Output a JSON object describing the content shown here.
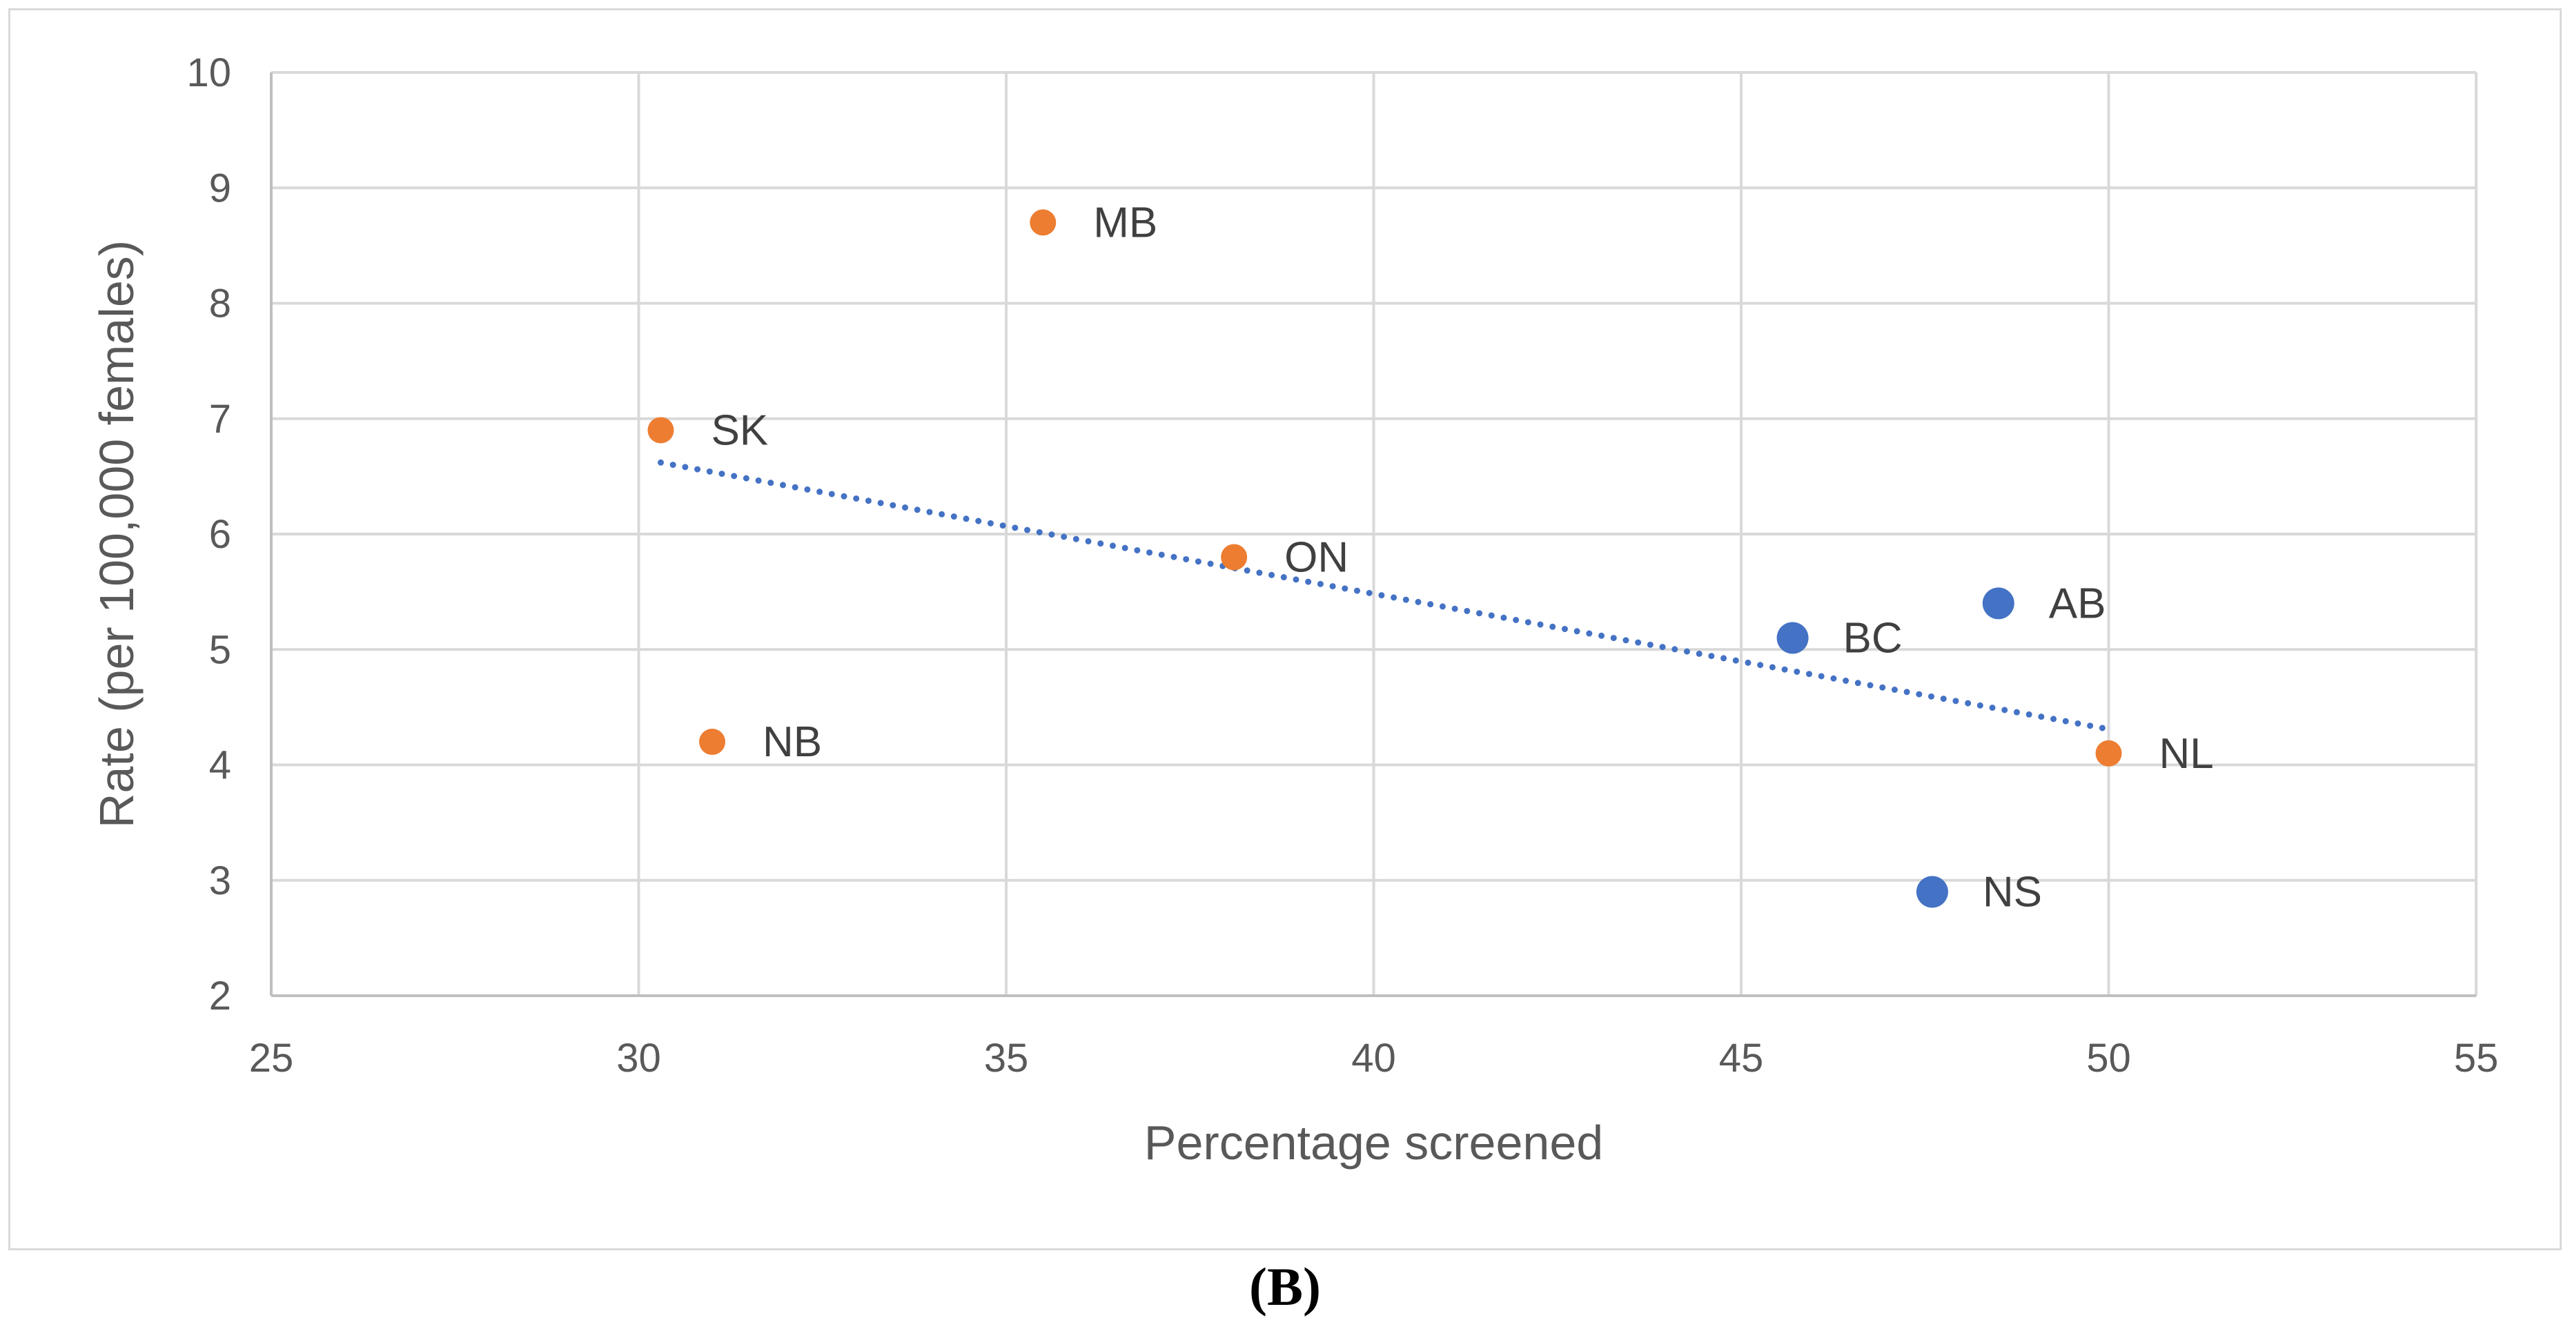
{
  "chart_data": {
    "type": "scatter",
    "title": "",
    "xlabel": "Percentage screened",
    "ylabel": "Rate (per 100,000 females)",
    "xlim": [
      25,
      55
    ],
    "ylim": [
      2,
      10
    ],
    "xticks": [
      25,
      30,
      35,
      40,
      45,
      50,
      55
    ],
    "yticks": [
      2,
      3,
      4,
      5,
      6,
      7,
      8,
      9,
      10
    ],
    "grid": true,
    "series": [
      {
        "name": "orange",
        "color": "#ED7D31",
        "marker_size": "small",
        "points": [
          {
            "label": "MB",
            "x": 35.5,
            "y": 8.7
          },
          {
            "label": "SK",
            "x": 30.3,
            "y": 6.9
          },
          {
            "label": "ON",
            "x": 38.1,
            "y": 5.8
          },
          {
            "label": "NB",
            "x": 31.0,
            "y": 4.2
          },
          {
            "label": "NL",
            "x": 50.0,
            "y": 4.1
          }
        ]
      },
      {
        "name": "blue",
        "color": "#4472C4",
        "marker_size": "large",
        "points": [
          {
            "label": "AB",
            "x": 48.5,
            "y": 5.4
          },
          {
            "label": "BC",
            "x": 45.7,
            "y": 5.1
          },
          {
            "label": "NS",
            "x": 47.6,
            "y": 2.9
          }
        ]
      }
    ],
    "trendline": {
      "type": "linear",
      "style": "dotted",
      "color": "#4472C4",
      "x": [
        30.3,
        50.0
      ],
      "y": [
        6.62,
        4.31
      ]
    }
  },
  "panel_label": "(B)"
}
